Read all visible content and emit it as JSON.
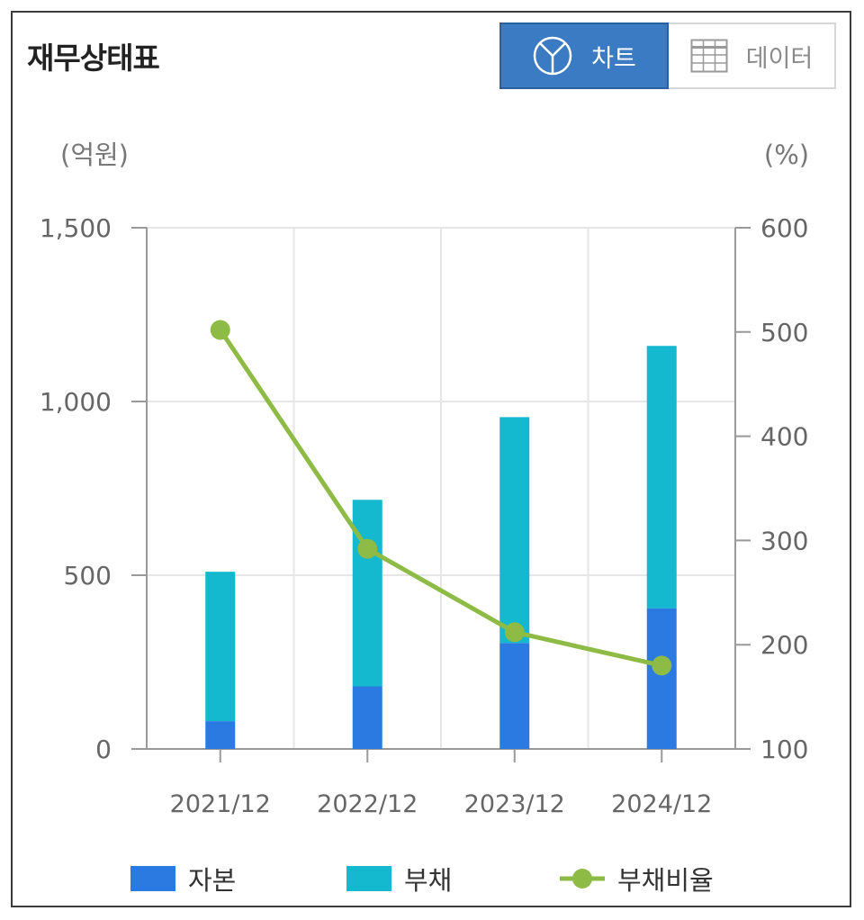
{
  "title": "재무상태표",
  "toggle": {
    "chart_label": "차트",
    "data_label": "데이터",
    "chart_icon": "pie-chart-icon",
    "data_icon": "table-grid-icon",
    "active": "chart"
  },
  "colors": {
    "equity": "#2a7ae2",
    "liabilities": "#14b8cf",
    "ratio": "#8dbb45",
    "toggle_active": "#3b7bc4",
    "axis": "#999999",
    "grid": "#e6e6e6"
  },
  "chart_data": {
    "type": "bar",
    "stacked": true,
    "categories": [
      "2021/12",
      "2022/12",
      "2023/12",
      "2024/12"
    ],
    "series": [
      {
        "name": "자본",
        "values": [
          80,
          180,
          305,
          405
        ],
        "axis": "left"
      },
      {
        "name": "부채",
        "values": [
          430,
          537,
          650,
          755
        ],
        "axis": "left"
      },
      {
        "name": "부채비율",
        "type": "line",
        "values": [
          502,
          292,
          212,
          180
        ],
        "axis": "right"
      }
    ],
    "left_axis": {
      "unit": "(억원)",
      "ylim": [
        0,
        1500
      ],
      "ticks": [
        "0",
        "500",
        "1,000",
        "1,500"
      ],
      "tick_values": [
        0,
        500,
        1000,
        1500
      ]
    },
    "right_axis": {
      "unit": "(%)",
      "ylim": [
        100,
        600
      ],
      "ticks": [
        "100",
        "200",
        "300",
        "400",
        "500",
        "600"
      ],
      "tick_values": [
        100,
        200,
        300,
        400,
        500,
        600
      ]
    },
    "grid": true,
    "legend_position": "bottom"
  }
}
